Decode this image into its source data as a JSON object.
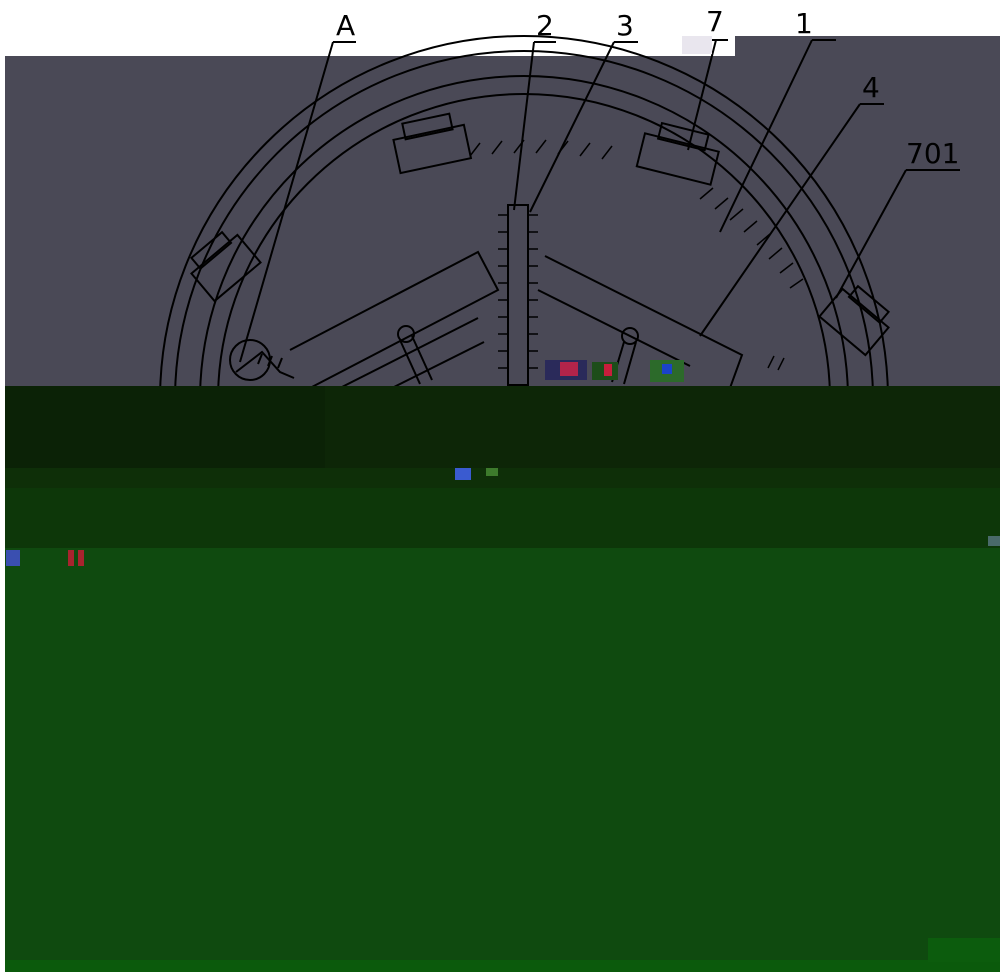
{
  "callouts": {
    "A": "A",
    "2": "2",
    "3": "3",
    "7": "7",
    "1": "1",
    "4": "4",
    "701": "701"
  },
  "colors": {
    "page_background": "#ffffff",
    "upper_panel": "#4a4956",
    "line_art": "#000000",
    "dark_band_1": "#0d2607",
    "dark_band_2": "#0e2f08",
    "dark_band_3": "#0d3709",
    "lower_panel": "#0f4a0f",
    "bottom_strip": "#0b5a0c"
  }
}
